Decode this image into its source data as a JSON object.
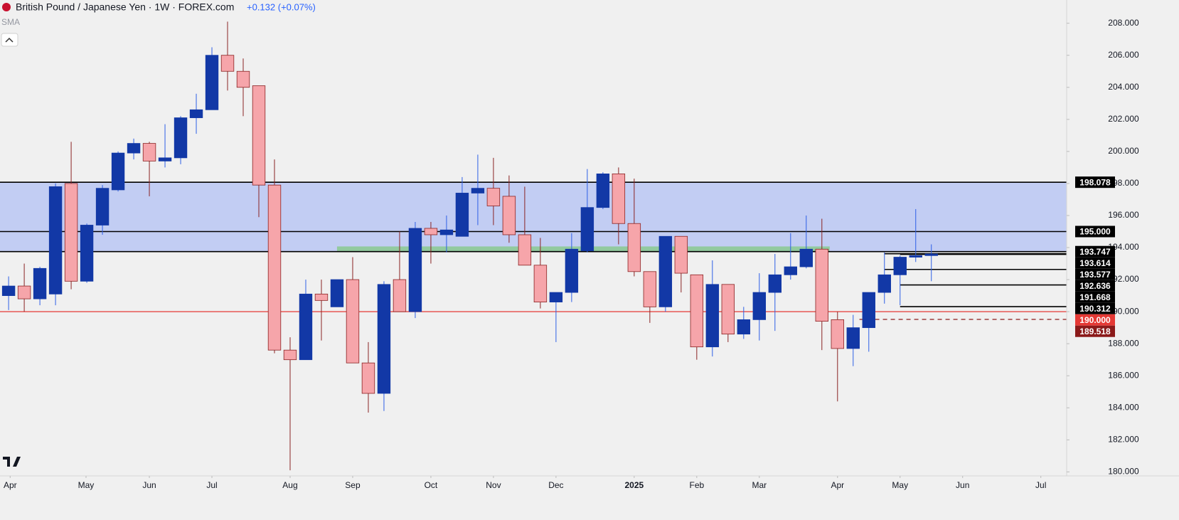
{
  "chart_data": {
    "type": "candlestick",
    "title": "British Pound / Japanese Yen · 1W · FOREX.com",
    "change": "+0.132 (+0.07%)",
    "indicator": "SMA",
    "up_color": "#1238a6",
    "down_color": "#f6a5aa",
    "down_edge": "#8a2323",
    "up_wick": "#2d5fe6",
    "open": [
      191.0,
      191.6,
      190.8,
      191.1,
      198.0,
      191.9,
      195.4,
      197.6,
      199.9,
      200.5,
      199.4,
      199.6,
      202.1,
      202.6,
      206.0,
      205.0,
      204.1,
      197.9,
      187.6,
      187.0,
      191.1,
      190.3,
      192.0,
      186.8,
      184.9,
      192.0,
      190.0,
      195.2,
      194.8,
      194.7,
      197.4,
      197.7,
      197.2,
      194.8,
      192.9,
      190.6,
      191.2,
      193.8,
      196.5,
      198.6,
      195.5,
      192.5,
      190.3,
      194.7,
      192.3,
      187.8,
      191.7,
      188.6,
      189.5,
      191.2,
      192.3,
      192.8,
      193.9,
      189.5,
      187.7,
      189.0,
      191.2,
      192.3,
      193.4,
      193.5
    ],
    "high": [
      192.2,
      193.0,
      192.8,
      198.0,
      200.6,
      195.5,
      197.9,
      200.0,
      200.8,
      200.6,
      201.7,
      202.2,
      203.6,
      206.5,
      208.1,
      205.8,
      204.1,
      199.5,
      188.4,
      192.0,
      192.0,
      192.0,
      193.4,
      188.1,
      191.9,
      195.0,
      195.6,
      195.6,
      196.0,
      198.4,
      199.8,
      199.6,
      198.5,
      197.8,
      194.6,
      191.2,
      194.9,
      198.9,
      198.7,
      199.0,
      198.3,
      192.5,
      194.7,
      194.7,
      192.3,
      193.2,
      191.7,
      190.3,
      192.4,
      193.6,
      194.9,
      196.0,
      195.8,
      190.0,
      189.8,
      191.2,
      193.7,
      193.5,
      196.4,
      194.2
    ],
    "low": [
      190.1,
      190.0,
      190.4,
      190.4,
      191.4,
      191.8,
      194.8,
      197.5,
      199.5,
      197.2,
      199.0,
      199.2,
      201.1,
      202.6,
      203.8,
      202.2,
      195.9,
      187.4,
      180.1,
      187.0,
      188.2,
      190.3,
      186.8,
      183.7,
      183.8,
      190.0,
      189.6,
      193.0,
      193.7,
      194.7,
      195.4,
      195.4,
      194.3,
      192.9,
      190.2,
      188.1,
      190.6,
      193.7,
      196.4,
      194.2,
      192.2,
      189.3,
      190.0,
      191.2,
      187.0,
      187.2,
      188.1,
      188.3,
      188.2,
      188.8,
      192.0,
      192.7,
      187.6,
      184.4,
      186.6,
      187.5,
      190.5,
      190.4,
      193.1,
      191.9
    ],
    "close": [
      191.6,
      190.8,
      192.7,
      197.8,
      191.9,
      195.4,
      197.7,
      199.9,
      200.5,
      199.4,
      199.6,
      202.1,
      202.6,
      206.0,
      205.0,
      204.0,
      197.9,
      187.6,
      187.0,
      191.1,
      190.7,
      192.0,
      186.8,
      184.9,
      191.7,
      190.0,
      195.2,
      194.8,
      195.1,
      197.4,
      197.7,
      196.6,
      194.8,
      192.9,
      190.6,
      191.2,
      193.9,
      196.5,
      198.6,
      195.5,
      192.5,
      190.3,
      194.7,
      192.4,
      187.8,
      191.7,
      188.6,
      189.5,
      191.2,
      192.3,
      192.8,
      193.9,
      189.4,
      187.7,
      189.0,
      191.2,
      192.3,
      193.4,
      193.5,
      193.6
    ],
    "xlim": [
      -0.55,
      67.65
    ],
    "xticks": [
      {
        "value": 0.1,
        "label": "Apr"
      },
      {
        "value": 4.95,
        "label": "May"
      },
      {
        "value": 9,
        "label": "Jun"
      },
      {
        "value": 13,
        "label": "Jul"
      },
      {
        "value": 18,
        "label": "Aug"
      },
      {
        "value": 22,
        "label": "Sep"
      },
      {
        "value": 27,
        "label": "Oct"
      },
      {
        "value": 31,
        "label": "Nov"
      },
      {
        "value": 35,
        "label": "Dec"
      },
      {
        "value": 40,
        "label": "2025"
      },
      {
        "value": 44,
        "label": "Feb"
      },
      {
        "value": 48,
        "label": "Mar"
      },
      {
        "value": 53,
        "label": "Apr"
      },
      {
        "value": 57,
        "label": "May"
      },
      {
        "value": 61,
        "label": "Jun"
      },
      {
        "value": 66,
        "label": "Jul"
      }
    ],
    "ylim": [
      179.75,
      209.45
    ],
    "yticks": [
      {
        "value": 180,
        "label": "180.000"
      },
      {
        "value": 182,
        "label": "182.000"
      },
      {
        "value": 184,
        "label": "184.000"
      },
      {
        "value": 186,
        "label": "186.000"
      },
      {
        "value": 188,
        "label": "188.000"
      },
      {
        "value": 190,
        "label": "190.000"
      },
      {
        "value": 192,
        "label": "192.000"
      },
      {
        "value": 194,
        "label": "194.000"
      },
      {
        "value": 196,
        "label": "196.000"
      },
      {
        "value": 198,
        "label": "198.000"
      },
      {
        "value": 200,
        "label": "200.000"
      },
      {
        "value": 202,
        "label": "202.000"
      },
      {
        "value": 204,
        "label": "204.000"
      },
      {
        "value": 206,
        "label": "206.000"
      },
      {
        "value": 208,
        "label": "208.000"
      }
    ],
    "zones": [
      {
        "low": 193.747,
        "high": 198.078,
        "color": "#bfcaf2"
      },
      {
        "low": 193.747,
        "high": 194.07,
        "from": 21.0,
        "to": 52.5,
        "color": "#8fc99a"
      }
    ],
    "levels": [
      {
        "value": 198.078,
        "label": "198.078",
        "color": "#000000"
      },
      {
        "value": 195.0,
        "label": "195.000",
        "color": "#000000"
      },
      {
        "value": 193.747,
        "label": "193.747",
        "color": "#000000"
      },
      {
        "value": 193.614,
        "label": "193.614",
        "color": "#000000",
        "from": 56
      },
      {
        "value": 193.577,
        "label": "193.577",
        "color": "#000000",
        "from": 57
      },
      {
        "value": 192.636,
        "label": "192.636",
        "color": "#000000",
        "from": 56
      },
      {
        "value": 191.668,
        "label": "191.668",
        "color": "#000000",
        "from": 57
      },
      {
        "value": 190.312,
        "label": "190.312",
        "color": "#000000",
        "from": 57
      },
      {
        "value": 190.0,
        "label": "190.000",
        "color": "#e53935"
      },
      {
        "value": 189.518,
        "label": "189.518",
        "color": "#8b1a1a",
        "from": 54.4,
        "dashed": true
      }
    ]
  }
}
